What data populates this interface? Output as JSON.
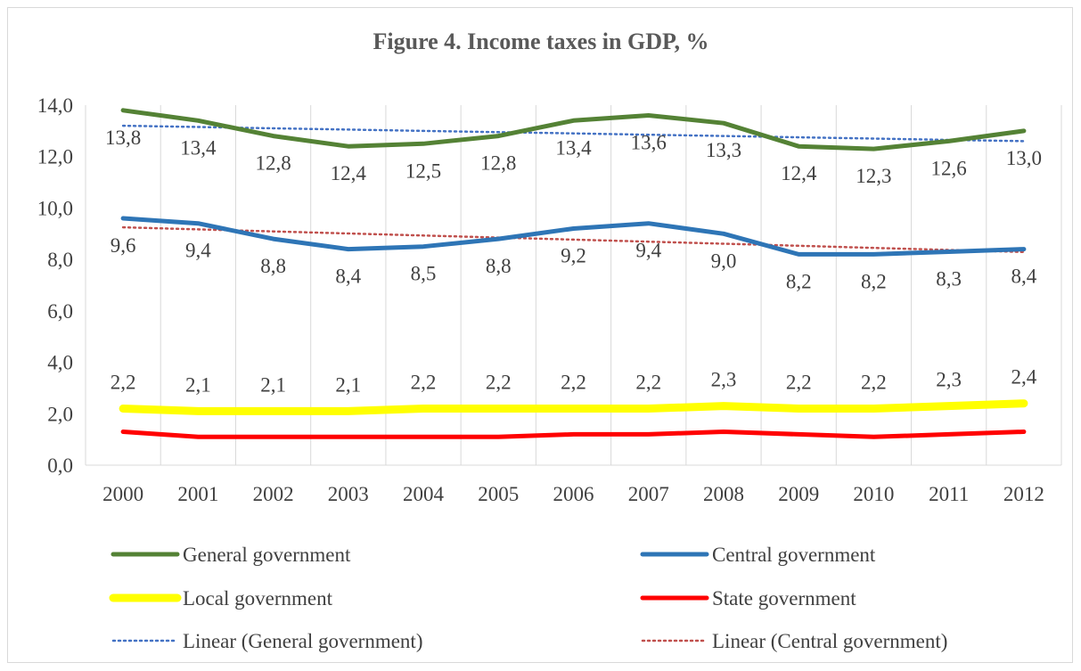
{
  "chart_data": {
    "type": "line",
    "title": "Figure 4. Income taxes in GDP, %",
    "categories": [
      "2000",
      "2001",
      "2002",
      "2003",
      "2004",
      "2005",
      "2006",
      "2007",
      "2008",
      "2009",
      "2010",
      "2011",
      "2012"
    ],
    "ylim": [
      0,
      14
    ],
    "yticks": [
      "0,0",
      "2,0",
      "4,0",
      "6,0",
      "8,0",
      "10,0",
      "12,0",
      "14,0"
    ],
    "grid": "vertical",
    "legend_position": "bottom",
    "series": [
      {
        "name": "General government",
        "color": "#548235",
        "style": "solid",
        "labels": true,
        "values": [
          13.8,
          13.4,
          12.8,
          12.4,
          12.5,
          12.8,
          13.4,
          13.6,
          13.3,
          12.4,
          12.3,
          12.6,
          13.0
        ],
        "label_text": [
          "13,8",
          "13,4",
          "12,8",
          "12,4",
          "12,5",
          "12,8",
          "13,4",
          "13,6",
          "13,3",
          "12,4",
          "12,3",
          "12,6",
          "13,0"
        ]
      },
      {
        "name": "Central government",
        "color": "#2E75B6",
        "style": "solid",
        "labels": true,
        "values": [
          9.6,
          9.4,
          8.8,
          8.4,
          8.5,
          8.8,
          9.2,
          9.4,
          9.0,
          8.2,
          8.2,
          8.3,
          8.4
        ],
        "label_text": [
          "9,6",
          "9,4",
          "8,8",
          "8,4",
          "8,5",
          "8,8",
          "9,2",
          "9,4",
          "9,0",
          "8,2",
          "8,2",
          "8,3",
          "8,4"
        ]
      },
      {
        "name": "Local government",
        "color": "#FFFF00",
        "style": "solid",
        "labels": true,
        "values": [
          2.2,
          2.1,
          2.1,
          2.1,
          2.2,
          2.2,
          2.2,
          2.2,
          2.3,
          2.2,
          2.2,
          2.3,
          2.4
        ],
        "label_text": [
          "2,2",
          "2,1",
          "2,1",
          "2,1",
          "2,2",
          "2,2",
          "2,2",
          "2,2",
          "2,3",
          "2,2",
          "2,2",
          "2,3",
          "2,4"
        ]
      },
      {
        "name": "State government",
        "color": "#FF0000",
        "style": "solid",
        "labels": false,
        "values": [
          1.3,
          1.1,
          1.1,
          1.1,
          1.1,
          1.1,
          1.2,
          1.2,
          1.3,
          1.2,
          1.1,
          1.2,
          1.3
        ]
      },
      {
        "name": "Linear (General government)",
        "color": "#4472C4",
        "style": "dotted",
        "labels": false,
        "values": [
          13.2,
          13.15,
          13.1,
          13.05,
          13.0,
          12.95,
          12.9,
          12.85,
          12.8,
          12.75,
          12.7,
          12.65,
          12.6
        ]
      },
      {
        "name": "Linear (Central government)",
        "color": "#C0504D",
        "style": "dotted",
        "labels": false,
        "values": [
          9.25,
          9.17,
          9.09,
          9.01,
          8.93,
          8.85,
          8.77,
          8.69,
          8.61,
          8.53,
          8.45,
          8.37,
          8.29
        ]
      }
    ]
  }
}
